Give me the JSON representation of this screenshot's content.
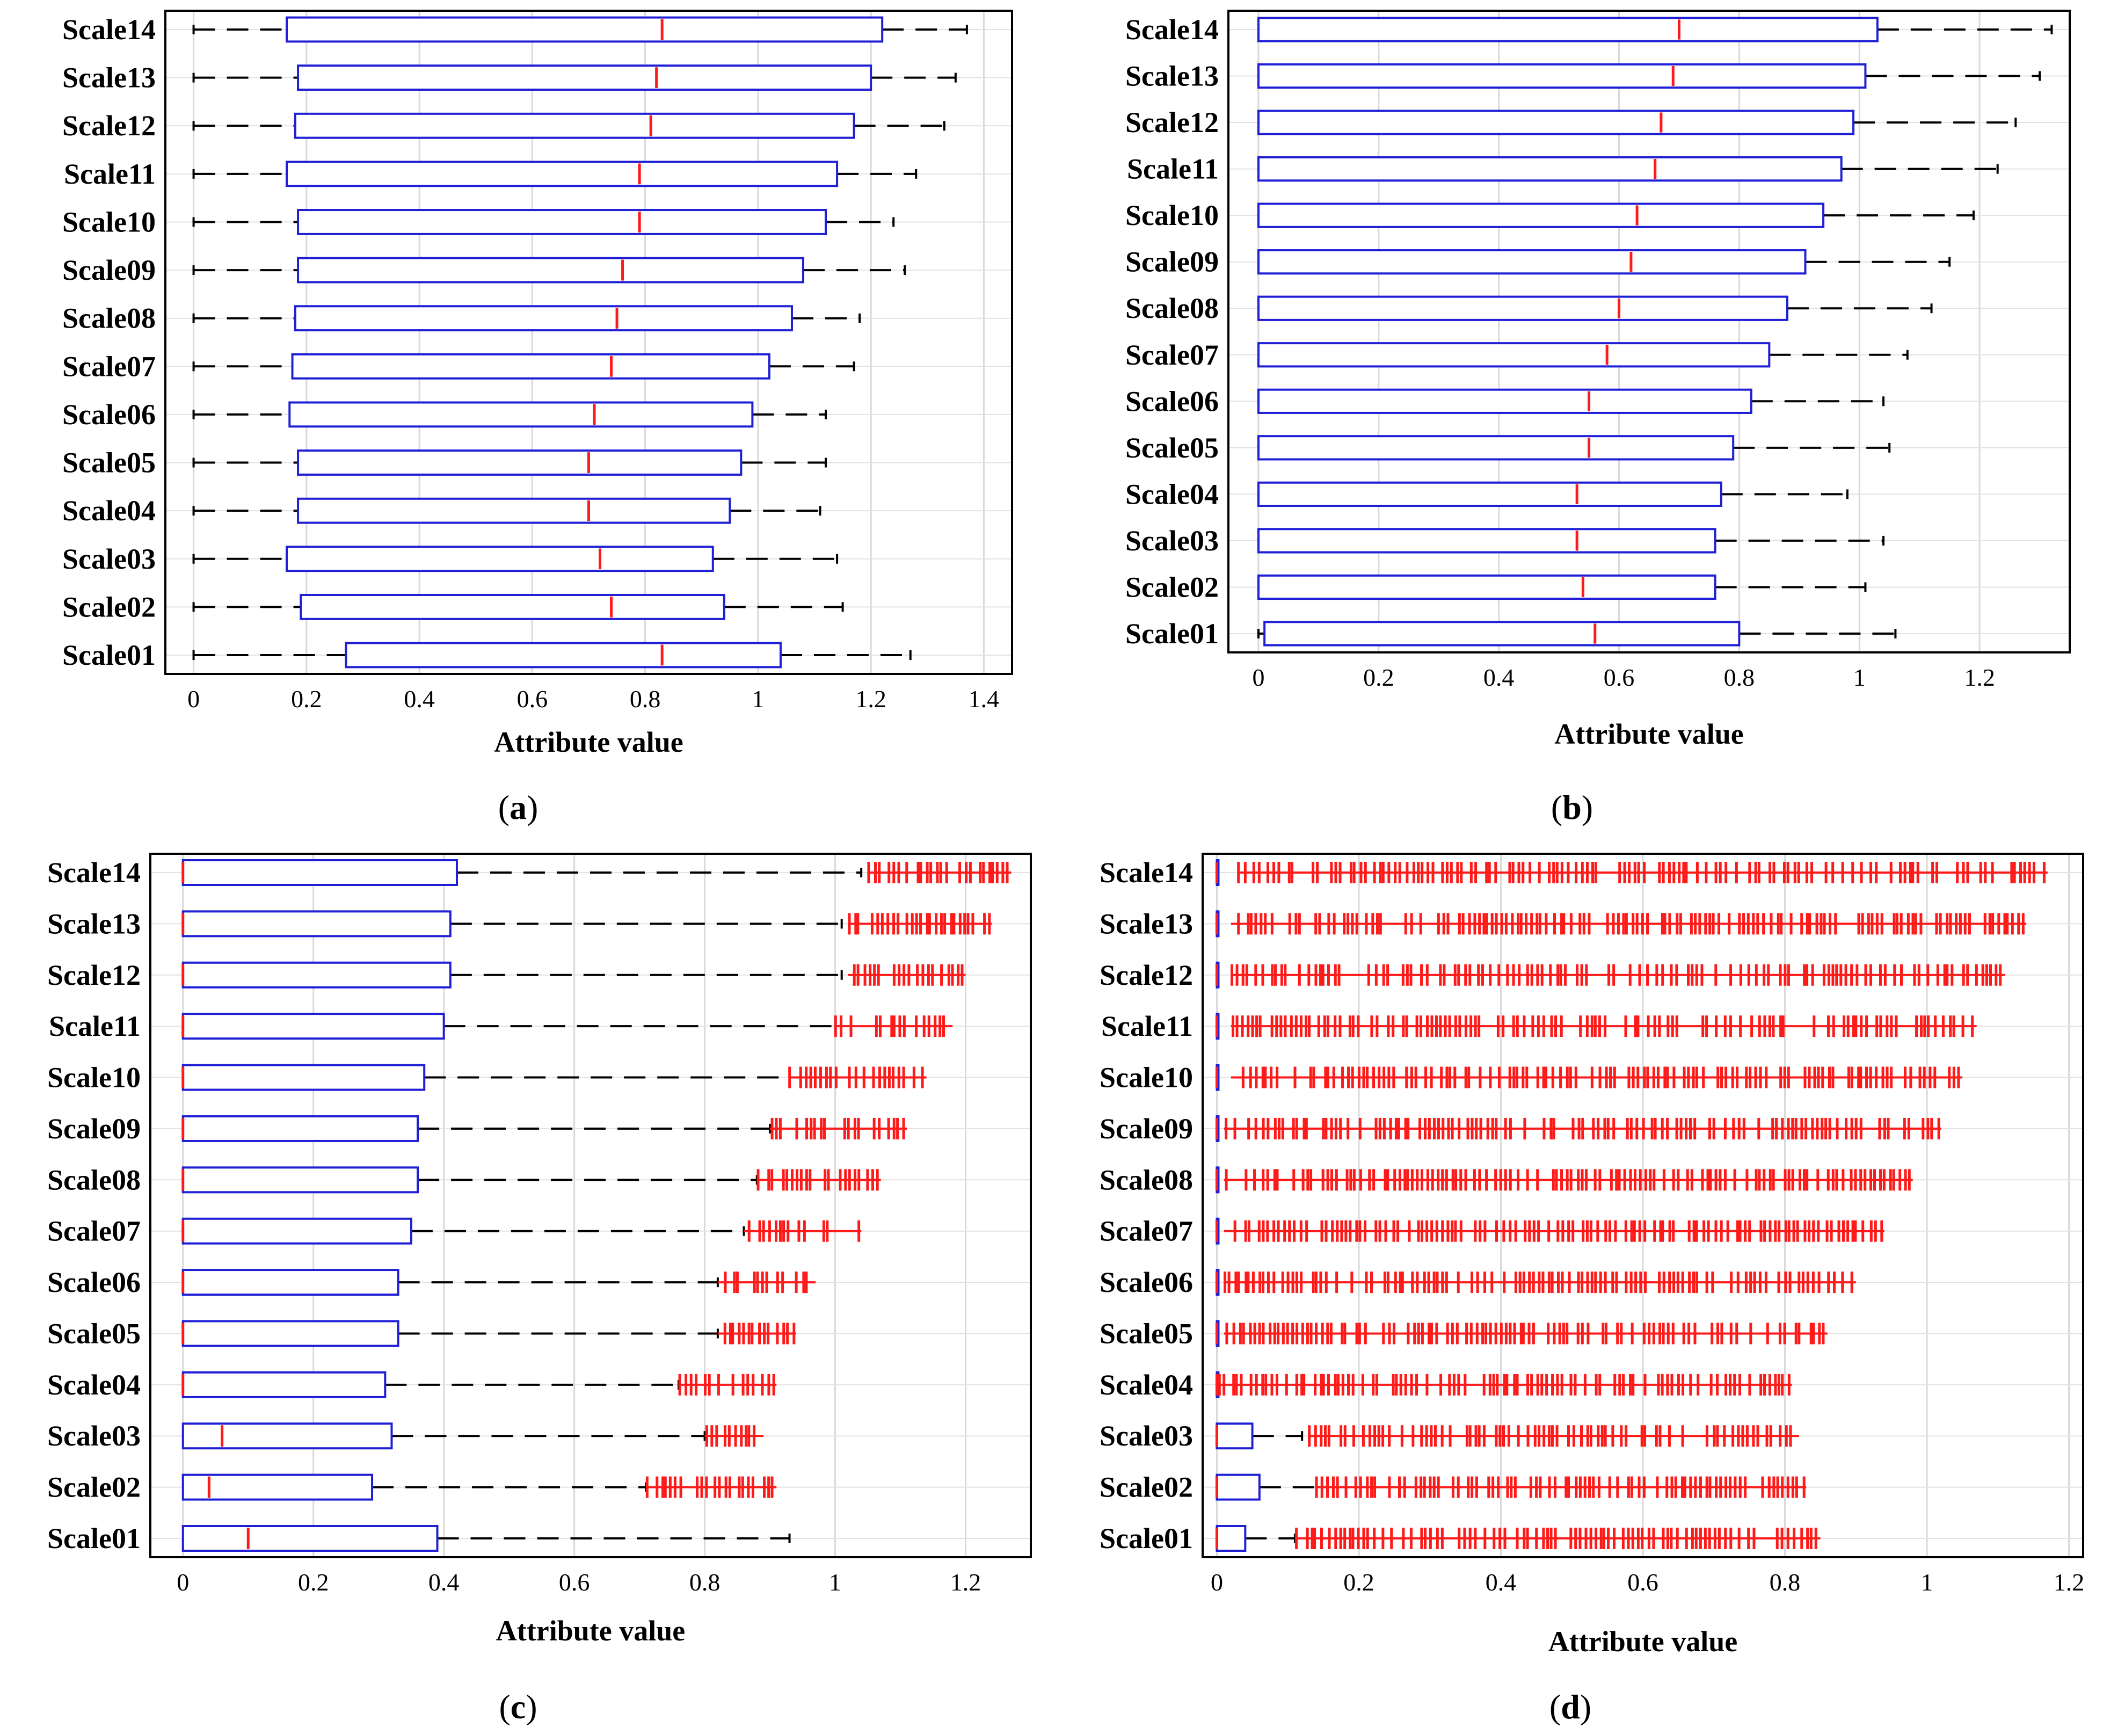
{
  "figure": {
    "captions": [
      "a",
      "b",
      "c",
      "d"
    ]
  },
  "chart_data": [
    {
      "panel": "a",
      "type": "boxplot",
      "xlabel": "Attribute value",
      "xlim": [
        -0.05,
        1.45
      ],
      "xticks": [
        0,
        0.2,
        0.4,
        0.6,
        0.8,
        1,
        1.2,
        1.4
      ],
      "xtick_labels": [
        "0",
        "0.2",
        "0.4",
        "0.6",
        "0.8",
        "1",
        "1.2",
        "1.4"
      ],
      "categories": [
        "Scale14",
        "Scale13",
        "Scale12",
        "Scale11",
        "Scale10",
        "Scale09",
        "Scale08",
        "Scale07",
        "Scale06",
        "Scale05",
        "Scale04",
        "Scale03",
        "Scale02",
        "Scale01"
      ],
      "boxes": [
        {
          "min": 0,
          "q1": 0.165,
          "median": 0.83,
          "q3": 1.22,
          "max": 1.37
        },
        {
          "min": 0,
          "q1": 0.185,
          "median": 0.82,
          "q3": 1.2,
          "max": 1.35
        },
        {
          "min": 0,
          "q1": 0.18,
          "median": 0.81,
          "q3": 1.17,
          "max": 1.33
        },
        {
          "min": 0,
          "q1": 0.165,
          "median": 0.79,
          "q3": 1.14,
          "max": 1.28
        },
        {
          "min": 0,
          "q1": 0.185,
          "median": 0.79,
          "q3": 1.12,
          "max": 1.24
        },
        {
          "min": 0,
          "q1": 0.185,
          "median": 0.76,
          "q3": 1.08,
          "max": 1.26
        },
        {
          "min": 0,
          "q1": 0.18,
          "median": 0.75,
          "q3": 1.06,
          "max": 1.18
        },
        {
          "min": 0,
          "q1": 0.175,
          "median": 0.74,
          "q3": 1.02,
          "max": 1.17
        },
        {
          "min": 0,
          "q1": 0.17,
          "median": 0.71,
          "q3": 0.99,
          "max": 1.12
        },
        {
          "min": 0,
          "q1": 0.185,
          "median": 0.7,
          "q3": 0.97,
          "max": 1.12
        },
        {
          "min": 0,
          "q1": 0.185,
          "median": 0.7,
          "q3": 0.95,
          "max": 1.11
        },
        {
          "min": 0,
          "q1": 0.165,
          "median": 0.72,
          "q3": 0.92,
          "max": 1.14
        },
        {
          "min": 0,
          "q1": 0.19,
          "median": 0.74,
          "q3": 0.94,
          "max": 1.15
        },
        {
          "min": 0,
          "q1": 0.27,
          "median": 0.83,
          "q3": 1.04,
          "max": 1.27
        }
      ]
    },
    {
      "panel": "b",
      "type": "boxplot",
      "xlabel": "Attribute value",
      "xlim": [
        -0.05,
        1.35
      ],
      "xticks": [
        0,
        0.2,
        0.4,
        0.6,
        0.8,
        1,
        1.2
      ],
      "xtick_labels": [
        "0",
        "0.2",
        "0.4",
        "0.6",
        "0.8",
        "1",
        "1.2"
      ],
      "categories": [
        "Scale14",
        "Scale13",
        "Scale12",
        "Scale11",
        "Scale10",
        "Scale09",
        "Scale08",
        "Scale07",
        "Scale06",
        "Scale05",
        "Scale04",
        "Scale03",
        "Scale02",
        "Scale01"
      ],
      "boxes": [
        {
          "min": 0,
          "q1": 0,
          "median": 0.7,
          "q3": 1.03,
          "max": 1.32
        },
        {
          "min": 0,
          "q1": 0,
          "median": 0.69,
          "q3": 1.01,
          "max": 1.3
        },
        {
          "min": 0,
          "q1": 0,
          "median": 0.67,
          "q3": 0.99,
          "max": 1.26
        },
        {
          "min": 0,
          "q1": 0,
          "median": 0.66,
          "q3": 0.97,
          "max": 1.23
        },
        {
          "min": 0,
          "q1": 0,
          "median": 0.63,
          "q3": 0.94,
          "max": 1.19
        },
        {
          "min": 0,
          "q1": 0,
          "median": 0.62,
          "q3": 0.91,
          "max": 1.15
        },
        {
          "min": 0,
          "q1": 0,
          "median": 0.6,
          "q3": 0.88,
          "max": 1.12
        },
        {
          "min": 0,
          "q1": 0,
          "median": 0.58,
          "q3": 0.85,
          "max": 1.08
        },
        {
          "min": 0,
          "q1": 0,
          "median": 0.55,
          "q3": 0.82,
          "max": 1.04
        },
        {
          "min": 0,
          "q1": 0,
          "median": 0.55,
          "q3": 0.79,
          "max": 1.05
        },
        {
          "min": 0,
          "q1": 0,
          "median": 0.53,
          "q3": 0.77,
          "max": 0.98
        },
        {
          "min": 0,
          "q1": 0,
          "median": 0.53,
          "q3": 0.76,
          "max": 1.04
        },
        {
          "min": 0,
          "q1": 0,
          "median": 0.54,
          "q3": 0.76,
          "max": 1.01
        },
        {
          "min": 0,
          "q1": 0.01,
          "median": 0.56,
          "q3": 0.8,
          "max": 1.06
        }
      ]
    },
    {
      "panel": "c",
      "type": "boxplot",
      "xlabel": "Attribute value",
      "xlim": [
        -0.05,
        1.3
      ],
      "xticks": [
        0,
        0.2,
        0.4,
        0.6,
        0.8,
        1,
        1.2
      ],
      "xtick_labels": [
        "0",
        "0.2",
        "0.4",
        "0.6",
        "0.8",
        "1",
        "1.2"
      ],
      "categories": [
        "Scale14",
        "Scale13",
        "Scale12",
        "Scale11",
        "Scale10",
        "Scale09",
        "Scale08",
        "Scale07",
        "Scale06",
        "Scale05",
        "Scale04",
        "Scale03",
        "Scale02",
        "Scale01"
      ],
      "boxes": [
        {
          "min": 0,
          "q1": 0,
          "median": 0,
          "q3": 0.42,
          "max": 1.04,
          "outliers_range": [
            1.05,
            1.27
          ]
        },
        {
          "min": 0,
          "q1": 0,
          "median": 0,
          "q3": 0.41,
          "max": 1.01,
          "outliers_range": [
            1.02,
            1.24
          ]
        },
        {
          "min": 0,
          "q1": 0,
          "median": 0,
          "q3": 0.41,
          "max": 1.01,
          "outliers_range": [
            1.02,
            1.2
          ]
        },
        {
          "min": 0,
          "q1": 0,
          "median": 0,
          "q3": 0.4,
          "max": 1.0,
          "outliers_range": [
            1.0,
            1.18
          ]
        },
        {
          "min": 0,
          "q1": 0,
          "median": 0,
          "q3": 0.37,
          "max": 0.93,
          "outliers_range": [
            0.93,
            1.14
          ]
        },
        {
          "min": 0,
          "q1": 0,
          "median": 0,
          "q3": 0.36,
          "max": 0.9,
          "outliers_range": [
            0.9,
            1.11
          ]
        },
        {
          "min": 0,
          "q1": 0,
          "median": 0,
          "q3": 0.36,
          "max": 0.88,
          "outliers_range": [
            0.88,
            1.07
          ]
        },
        {
          "min": 0,
          "q1": 0,
          "median": 0,
          "q3": 0.35,
          "max": 0.86,
          "outliers_range": [
            0.86,
            1.04
          ]
        },
        {
          "min": 0,
          "q1": 0,
          "median": 0,
          "q3": 0.33,
          "max": 0.82,
          "outliers_range": [
            0.82,
            0.97
          ]
        },
        {
          "min": 0,
          "q1": 0,
          "median": 0,
          "q3": 0.33,
          "max": 0.82,
          "outliers_range": [
            0.82,
            0.94
          ]
        },
        {
          "min": 0,
          "q1": 0,
          "median": 0,
          "q3": 0.31,
          "max": 0.76,
          "outliers_range": [
            0.76,
            0.91
          ]
        },
        {
          "min": 0,
          "q1": 0,
          "median": 0.06,
          "q3": 0.32,
          "max": 0.8,
          "outliers_range": [
            0.8,
            0.89
          ]
        },
        {
          "min": 0,
          "q1": 0,
          "median": 0.04,
          "q3": 0.29,
          "max": 0.71,
          "outliers_range": [
            0.71,
            0.91
          ]
        },
        {
          "min": 0,
          "q1": 0,
          "median": 0.1,
          "q3": 0.39,
          "max": 0.93,
          "outliers_range": []
        }
      ]
    },
    {
      "panel": "d",
      "type": "boxplot",
      "xlabel": "Attribute value",
      "xlim": [
        -0.02,
        1.22
      ],
      "xticks": [
        0,
        0.2,
        0.4,
        0.6,
        0.8,
        1,
        1.2
      ],
      "xtick_labels": [
        "0",
        "0.2",
        "0.4",
        "0.6",
        "0.8",
        "1",
        "1.2"
      ],
      "categories": [
        "Scale14",
        "Scale13",
        "Scale12",
        "Scale11",
        "Scale10",
        "Scale09",
        "Scale08",
        "Scale07",
        "Scale06",
        "Scale05",
        "Scale04",
        "Scale03",
        "Scale02",
        "Scale01"
      ],
      "boxes": [
        {
          "min": 0,
          "q1": 0,
          "median": 0,
          "q3": 0,
          "max": 0,
          "outliers_range": [
            0.03,
            1.17
          ]
        },
        {
          "min": 0,
          "q1": 0,
          "median": 0,
          "q3": 0,
          "max": 0,
          "outliers_range": [
            0.02,
            1.14
          ]
        },
        {
          "min": 0,
          "q1": 0,
          "median": 0,
          "q3": 0,
          "max": 0,
          "outliers_range": [
            0.02,
            1.11
          ]
        },
        {
          "min": 0,
          "q1": 0,
          "median": 0,
          "q3": 0,
          "max": 0,
          "outliers_range": [
            0.02,
            1.07
          ]
        },
        {
          "min": 0,
          "q1": 0,
          "median": 0,
          "q3": 0,
          "max": 0,
          "outliers_range": [
            0.02,
            1.05
          ]
        },
        {
          "min": 0,
          "q1": 0,
          "median": 0,
          "q3": 0,
          "max": 0,
          "outliers_range": [
            0.01,
            1.02
          ]
        },
        {
          "min": 0,
          "q1": 0,
          "median": 0,
          "q3": 0,
          "max": 0,
          "outliers_range": [
            0.01,
            0.98
          ]
        },
        {
          "min": 0,
          "q1": 0,
          "median": 0,
          "q3": 0,
          "max": 0,
          "outliers_range": [
            0.01,
            0.94
          ]
        },
        {
          "min": 0,
          "q1": 0,
          "median": 0,
          "q3": 0,
          "max": 0,
          "outliers_range": [
            0.01,
            0.9
          ]
        },
        {
          "min": 0,
          "q1": 0,
          "median": 0,
          "q3": 0,
          "max": 0,
          "outliers_range": [
            0.01,
            0.86
          ]
        },
        {
          "min": 0,
          "q1": 0,
          "median": 0,
          "q3": 0,
          "max": 0,
          "outliers_range": [
            0.0,
            0.81
          ]
        },
        {
          "min": 0,
          "q1": 0,
          "median": 0,
          "q3": 0.05,
          "max": 0.12,
          "outliers_range": [
            0.13,
            0.82
          ]
        },
        {
          "min": 0,
          "q1": 0,
          "median": 0,
          "q3": 0.06,
          "max": 0.14,
          "outliers_range": [
            0.14,
            0.83
          ]
        },
        {
          "min": 0,
          "q1": 0,
          "median": 0,
          "q3": 0.04,
          "max": 0.11,
          "outliers_range": [
            0.11,
            0.85
          ]
        }
      ]
    }
  ]
}
